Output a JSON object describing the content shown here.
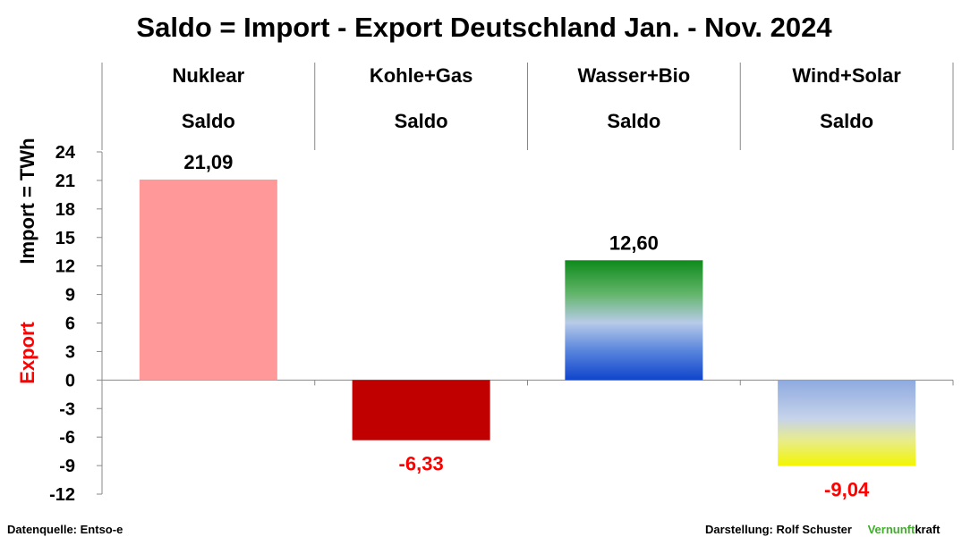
{
  "chart_data": {
    "type": "bar",
    "title": "Saldo = Import - Export Deutschland Jan. - Nov. 2024",
    "categories": [
      "Nuklear",
      "Kohle+Gas",
      "Wasser+Bio",
      "Wind+Solar"
    ],
    "category_sublabel": "Saldo",
    "values": [
      21.09,
      -6.33,
      12.6,
      -9.04
    ],
    "value_labels": [
      "21,09",
      "-6,33",
      "12,60",
      "-9,04"
    ],
    "colors": {
      "Nuklear": "#ff9999",
      "Kohle+Gas": "#c00000",
      "Wasser+Bio": "green-blue gradient",
      "Wind+Solar": "blue-yellow gradient",
      "positive_label": "#000000",
      "negative_label": "#ff0000"
    },
    "ylabel_import": "Import =  TWh",
    "ylabel_export": "Export",
    "ylim": [
      -12,
      24
    ],
    "yticks": [
      "24",
      "21",
      "18",
      "15",
      "12",
      "9",
      "6",
      "3",
      "0",
      "-3",
      "-6",
      "-9",
      "-12"
    ],
    "ytick_colors": [
      "black",
      "black",
      "black",
      "black",
      "black",
      "black",
      "black",
      "black",
      "black",
      "red",
      "red",
      "red",
      "red"
    ],
    "grid": false,
    "legend": "none"
  },
  "footer": {
    "source": "Datenquelle: Entso-e",
    "credit": "Darstellung:  Rolf Schuster",
    "brand_green": "Vernunft",
    "brand_black": "kraft",
    "brand_color": "#3fae2a"
  }
}
